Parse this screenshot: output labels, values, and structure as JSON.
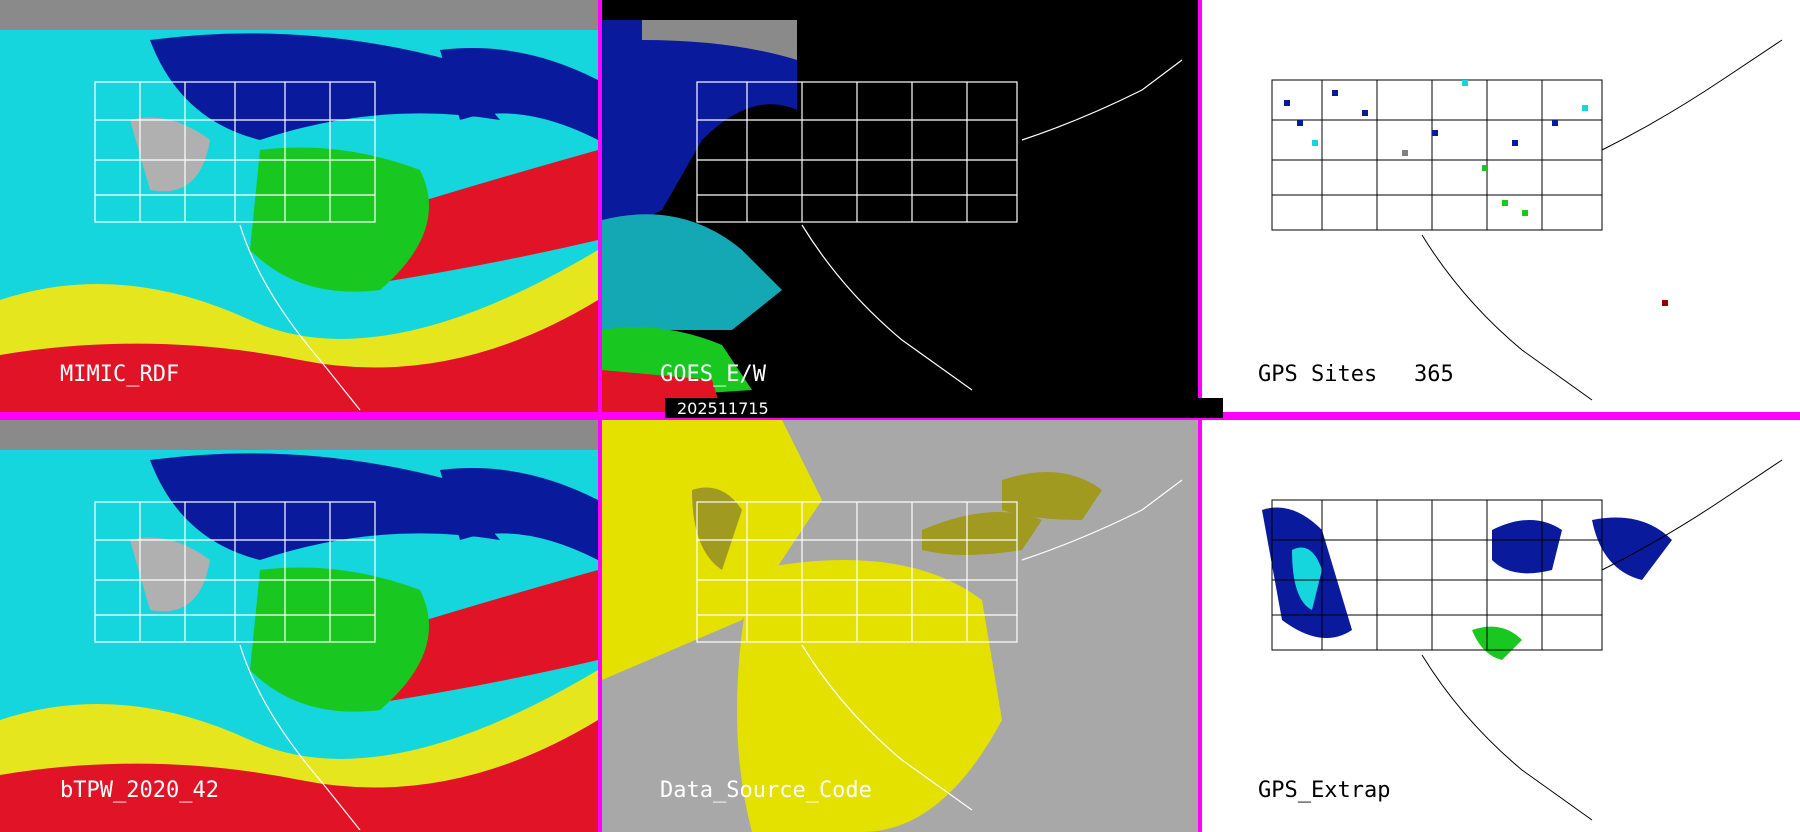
{
  "panels": [
    {
      "id": "mimic_rdf",
      "label": "MIMIC_RDF"
    },
    {
      "id": "goes_ew",
      "label": "GOES_E/W"
    },
    {
      "id": "gps_sites",
      "label": "GPS Sites",
      "count": "365"
    },
    {
      "id": "btpw",
      "label": "bTPW_2020_42"
    },
    {
      "id": "data_source",
      "label": "Data_Source_Code"
    },
    {
      "id": "gps_extrap",
      "label": "GPS_Extrap"
    }
  ],
  "timestamp": "202511715",
  "colors": {
    "divider": "#ff00ff",
    "tpw_cyan": "#14d6dc",
    "tpw_blue": "#0a1a9c",
    "tpw_green": "#18c820",
    "tpw_yellow": "#e6e61e",
    "tpw_red": "#e01426",
    "goes_bg": "#000000",
    "source_gray": "#a8a8a8",
    "source_yellow": "#e4e000",
    "source_olive": "#a09a20",
    "gps_bg": "#ffffff"
  },
  "icons": [
    "map-outline",
    "gps-site-marker"
  ]
}
